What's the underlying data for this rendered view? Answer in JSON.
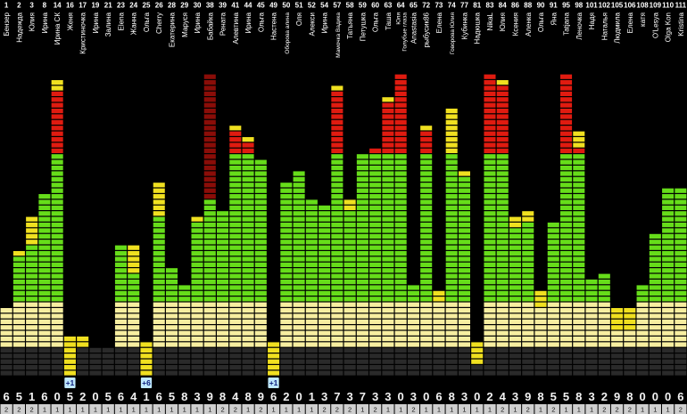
{
  "colors": {
    "background": "#000000",
    "red": "#e01b10",
    "green": "#66dd1a",
    "yellow": "#f0e020",
    "cream": "#f7eea0",
    "dark_cell": "#2a2a2a",
    "badge_bg": "#bfe8ff",
    "badge_fg": "#0a1c7a",
    "header_text": "#ffffff"
  },
  "columns": [
    {
      "num": "1",
      "name": "Бензер",
      "top": "6",
      "bottom": "2",
      "level": 345,
      "yellow": []
    },
    {
      "num": "2",
      "name": "Надежда",
      "top": "5",
      "bottom": "2",
      "level": 290,
      "yellow": [
        [
          283,
          290
        ]
      ]
    },
    {
      "num": "3",
      "name": "Юлия",
      "top": "1",
      "bottom": "2",
      "level": 278,
      "yellow": [
        [
          240,
          278
        ]
      ]
    },
    {
      "num": "8",
      "name": "Ирина",
      "top": "6",
      "bottom": "1",
      "level": 220,
      "yellow": []
    },
    {
      "num": "14",
      "name": "Ирина СК",
      "top": "0",
      "bottom": "1",
      "level": 100,
      "yellow": [
        [
          88,
          100
        ]
      ]
    },
    {
      "num": "16",
      "name": "Женя",
      "top": "5",
      "bottom": "1",
      "level": 420,
      "yellow": [
        [
          380,
          420
        ]
      ],
      "badge": "+1"
    },
    {
      "num": "17",
      "name": "Кристиночка",
      "top": "2",
      "bottom": "1",
      "level": 392,
      "yellow": [
        [
          375,
          392
        ]
      ]
    },
    {
      "num": "19",
      "name": "Ирина",
      "top": "0",
      "bottom": "1",
      "level": 390,
      "yellow": []
    },
    {
      "num": "21",
      "name": "Залина",
      "top": "5",
      "bottom": "1",
      "level": 405,
      "yellow": []
    },
    {
      "num": "23",
      "name": "Elena",
      "top": "6",
      "bottom": "1",
      "level": 272,
      "yellow": []
    },
    {
      "num": "24",
      "name": "Жанна",
      "top": "4",
      "bottom": "1",
      "level": 305,
      "yellow": [
        [
          275,
          305
        ]
      ]
    },
    {
      "num": "25",
      "name": "Ольга",
      "top": "1",
      "bottom": "1",
      "level": 420,
      "yellow": [
        [
          385,
          420
        ]
      ],
      "badge": "+6"
    },
    {
      "num": "26",
      "name": "Cherry",
      "top": "6",
      "bottom": "1",
      "level": 240,
      "yellow": [
        [
          203,
          240
        ]
      ]
    },
    {
      "num": "28",
      "name": "Екатерина",
      "top": "5",
      "bottom": "1",
      "level": 300,
      "yellow": []
    },
    {
      "num": "29",
      "name": "Маруся",
      "top": "8",
      "bottom": "1",
      "level": 318,
      "yellow": []
    },
    {
      "num": "30",
      "name": "Ирина",
      "top": "3",
      "bottom": "1",
      "level": 250,
      "yellow": [
        [
          240,
          250
        ]
      ]
    },
    {
      "num": "38",
      "name": "Бабайка",
      "top": "9",
      "bottom": "1",
      "level": 222,
      "yellow": [],
      "special": "darkred"
    },
    {
      "num": "39",
      "name": "Рената",
      "top": "8",
      "bottom": "2",
      "level": 237,
      "yellow": [
        [
          120,
          135
        ]
      ]
    },
    {
      "num": "41",
      "name": "Алевтина",
      "top": "4",
      "bottom": "2",
      "level": 150,
      "yellow": [
        [
          143,
          150
        ]
      ]
    },
    {
      "num": "44",
      "name": "Ирина",
      "top": "8",
      "bottom": "1",
      "level": 160,
      "yellow": [
        [
          155,
          160
        ]
      ]
    },
    {
      "num": "45",
      "name": "Ольга",
      "top": "9",
      "bottom": "2",
      "level": 182,
      "yellow": []
    },
    {
      "num": "49",
      "name": "Настена",
      "top": "6",
      "bottom": "1",
      "level": 420,
      "yellow": [
        [
          385,
          420
        ]
      ],
      "badge": "+1"
    },
    {
      "num": "50",
      "name": "Оборова алина",
      "top": "2",
      "bottom": "1",
      "level": 205,
      "yellow": []
    },
    {
      "num": "51",
      "name": "Оля",
      "top": "0",
      "bottom": "1",
      "level": 195,
      "yellow": []
    },
    {
      "num": "52",
      "name": "Алекси",
      "top": "1",
      "bottom": "1",
      "level": 225,
      "yellow": []
    },
    {
      "num": "54",
      "name": "Ирина",
      "top": "3",
      "bottom": "2",
      "level": 230,
      "yellow": []
    },
    {
      "num": "57",
      "name": "Мамочка Вадика",
      "top": "7",
      "bottom": "2",
      "level": 100,
      "yellow": [
        [
          93,
          100
        ]
      ]
    },
    {
      "num": "58",
      "name": "Татьяна",
      "top": "3",
      "bottom": "2",
      "level": 235,
      "yellow": [
        [
          225,
          235
        ]
      ]
    },
    {
      "num": "59",
      "name": "Петушка",
      "top": "7",
      "bottom": "1",
      "level": 175,
      "yellow": []
    },
    {
      "num": "60",
      "name": "Ольга",
      "top": "3",
      "bottom": "2",
      "level": 168,
      "yellow": []
    },
    {
      "num": "63",
      "name": "Таша",
      "top": "3",
      "bottom": "1",
      "level": 115,
      "yellow": [
        [
          108,
          115
        ]
      ]
    },
    {
      "num": "64",
      "name": "Юля\nГолубые глаза",
      "top": "0",
      "bottom": "1",
      "level": 85,
      "yellow": []
    },
    {
      "num": "65",
      "name": "Anastasia",
      "top": "3",
      "bottom": "2",
      "level": 318,
      "yellow": []
    },
    {
      "num": "72",
      "name": "рыбусик86",
      "top": "0",
      "bottom": "1",
      "level": 147,
      "yellow": [
        [
          138,
          147
        ]
      ]
    },
    {
      "num": "73",
      "name": "Елена",
      "top": "6",
      "bottom": "1",
      "level": 340,
      "yellow": [
        [
          325,
          340
        ]
      ]
    },
    {
      "num": "74",
      "name": "Говорова Юлия",
      "top": "8",
      "bottom": "1",
      "level": 175,
      "yellow": [
        [
          120,
          175
        ]
      ]
    },
    {
      "num": "77",
      "name": "Кубинка",
      "top": "3",
      "bottom": "1",
      "level": 200,
      "yellow": [
        [
          192,
          200
        ]
      ]
    },
    {
      "num": "81",
      "name": "Надюшка",
      "top": "0",
      "bottom": "1",
      "level": 408,
      "yellow": [
        [
          385,
          408
        ]
      ]
    },
    {
      "num": "83",
      "name": "NikaL",
      "top": "2",
      "bottom": "1",
      "level": 83,
      "yellow": []
    },
    {
      "num": "84",
      "name": "Юлия",
      "top": "4",
      "bottom": "2",
      "level": 97,
      "yellow": [
        [
          88,
          97
        ]
      ]
    },
    {
      "num": "86",
      "name": "Ксения",
      "top": "3",
      "bottom": "1",
      "level": 255,
      "yellow": [
        [
          245,
          255
        ]
      ]
    },
    {
      "num": "88",
      "name": "Аленка",
      "top": "9",
      "bottom": "2",
      "level": 248,
      "yellow": [
        [
          238,
          248
        ]
      ]
    },
    {
      "num": "90",
      "name": "Ольга",
      "top": "8",
      "bottom": "1",
      "level": 345,
      "yellow": [
        [
          325,
          345
        ]
      ]
    },
    {
      "num": "91",
      "name": "Яна",
      "top": "5",
      "bottom": "2",
      "level": 250,
      "yellow": []
    },
    {
      "num": "95",
      "name": "Tatjana",
      "top": "5",
      "bottom": "1",
      "level": 83,
      "yellow": []
    },
    {
      "num": "98",
      "name": "Леночка",
      "top": "8",
      "bottom": "1",
      "level": 168,
      "yellow": [
        [
          148,
          168
        ]
      ]
    },
    {
      "num": "101",
      "name": "Надя",
      "top": "3",
      "bottom": "1",
      "level": 315,
      "yellow": []
    },
    {
      "num": "102",
      "name": "Наталья",
      "top": "2",
      "bottom": "2",
      "level": 305,
      "yellow": []
    },
    {
      "num": "105",
      "name": "Людмила",
      "top": "9",
      "bottom": "2",
      "level": 368,
      "yellow": [
        [
          345,
          368
        ]
      ]
    },
    {
      "num": "106",
      "name": "Елена",
      "top": "8",
      "bottom": "2",
      "level": 368,
      "yellow": [
        [
          345,
          368
        ]
      ]
    },
    {
      "num": "108",
      "name": "катя",
      "top": "0",
      "bottom": "1",
      "level": 320,
      "yellow": []
    },
    {
      "num": "109",
      "name": "O'Lesya",
      "top": "0",
      "bottom": "1",
      "level": 262,
      "yellow": []
    },
    {
      "num": "110",
      "name": "Olga Kon",
      "top": "0",
      "bottom": "1",
      "level": 210,
      "yellow": []
    },
    {
      "num": "111",
      "name": "Kristina",
      "top": "6",
      "bottom": "2",
      "level": 210,
      "yellow": []
    }
  ]
}
